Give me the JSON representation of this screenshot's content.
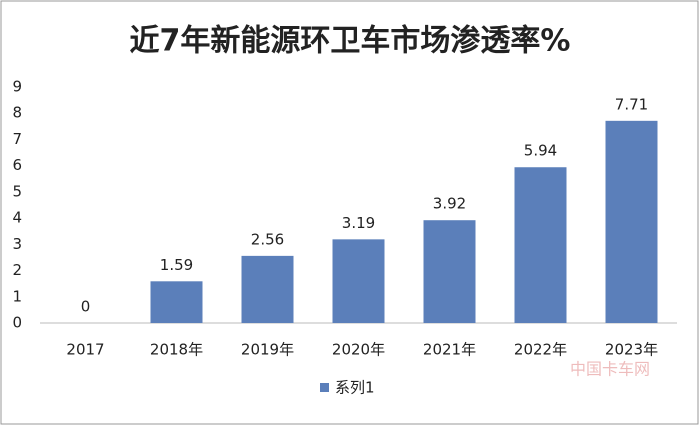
{
  "chart_data": {
    "type": "bar",
    "title": "近7年新能源环卫车市场渗透率%",
    "categories": [
      "2017",
      "2018年",
      "2019年",
      "2020年",
      "2021年",
      "2022年",
      "2023年"
    ],
    "series": [
      {
        "name": "系列1",
        "color": "#5b7fba",
        "values": [
          0,
          1.59,
          2.56,
          3.19,
          3.92,
          5.94,
          7.71
        ]
      }
    ],
    "ylim": [
      0,
      9
    ],
    "yticks": [
      0,
      1,
      2,
      3,
      4,
      5,
      6,
      7,
      8,
      9
    ],
    "grid": false,
    "legend": "bottom",
    "watermark": "中国卡车网"
  }
}
